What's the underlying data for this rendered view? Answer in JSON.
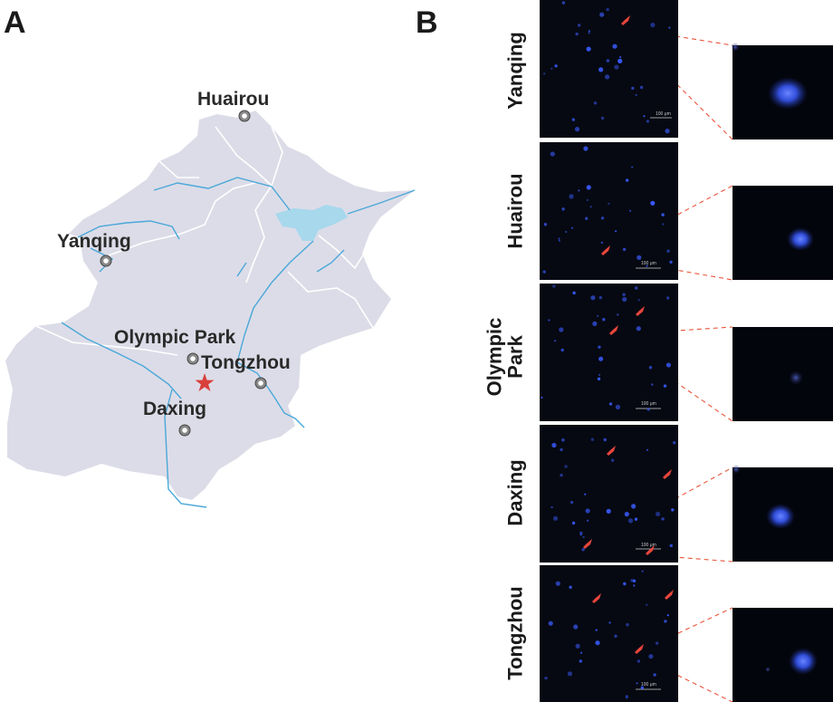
{
  "panels": {
    "a": "A",
    "b": "B"
  },
  "map": {
    "locations": [
      {
        "name": "Huairou"
      },
      {
        "name": "Yanqing"
      },
      {
        "name": "Olympic Park"
      },
      {
        "name": "Tongzhou"
      },
      {
        "name": "Daxing"
      }
    ],
    "colors": {
      "land": "#dcdce8",
      "water": "#9fd6ea",
      "river": "#4aa8d8",
      "border": "#ffffff",
      "star": "#d9403a"
    },
    "icons": {
      "site": "location-marker-icon",
      "center": "red-star-icon"
    }
  },
  "micrographs": {
    "rows": [
      {
        "label_lines": [
          "Yanqing"
        ],
        "scale_bar": "100 μm"
      },
      {
        "label_lines": [
          "Huairou"
        ],
        "scale_bar": "100 μm"
      },
      {
        "label_lines": [
          "Olympic",
          "Park"
        ],
        "scale_bar": "100 μm"
      },
      {
        "label_lines": [
          "Daxing"
        ],
        "scale_bar": "100 μm"
      },
      {
        "label_lines": [
          "Tongzhou"
        ],
        "scale_bar": "100 μm"
      }
    ],
    "colors": {
      "background": "#060912",
      "fluorescence": "#3a5cff",
      "arrow": "#e8453c",
      "connector": "#e8553a"
    },
    "icons": {
      "arrow": "red-arrow-icon"
    }
  }
}
